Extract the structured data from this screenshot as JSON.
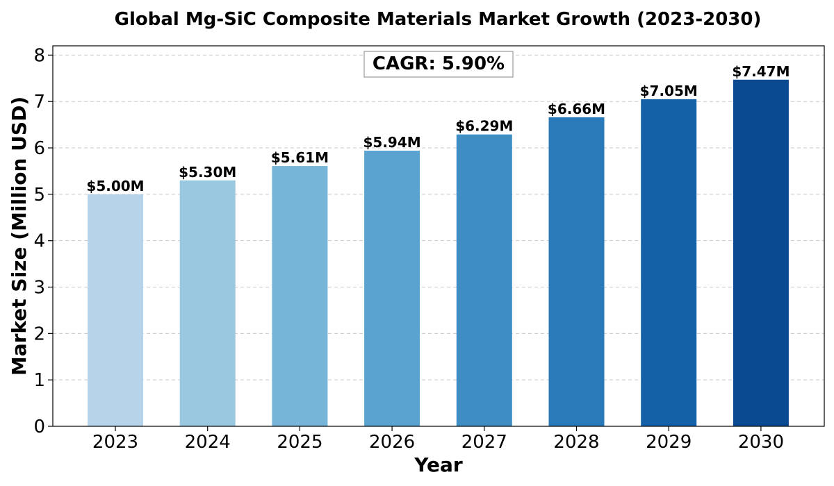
{
  "chart_data": {
    "type": "bar",
    "title": "Global Mg-SiC Composite Materials Market Growth (2023-2030)",
    "xlabel": "Year",
    "ylabel": "Market Size (Million USD)",
    "categories": [
      "2023",
      "2024",
      "2025",
      "2026",
      "2027",
      "2028",
      "2029",
      "2030"
    ],
    "values": [
      5.0,
      5.3,
      5.61,
      5.94,
      6.29,
      6.66,
      7.05,
      7.47
    ],
    "value_labels": [
      "$5.00M",
      "$5.30M",
      "$5.61M",
      "$5.94M",
      "$6.29M",
      "$6.66M",
      "$7.05M",
      "$7.47M"
    ],
    "colors": [
      "#b7d3ea",
      "#9ac8e0",
      "#76b4d8",
      "#5aa2cf",
      "#3e8ec4",
      "#2a79b9",
      "#1461a8",
      "#0a4a90"
    ],
    "ylim": [
      0,
      8.2
    ],
    "yticks": [
      "0",
      "1",
      "2",
      "3",
      "4",
      "5",
      "6",
      "7",
      "8"
    ],
    "grid": true,
    "annotation": "CAGR: 5.90%"
  }
}
